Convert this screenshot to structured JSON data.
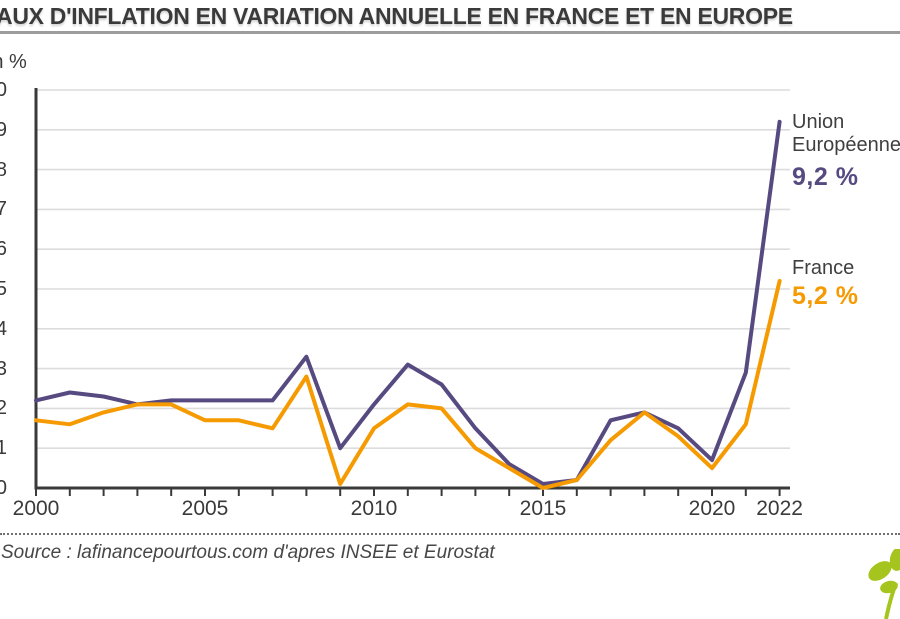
{
  "header": {
    "title": "TAUX D'INFLATION EN VARIATION ANNUELLE EN FRANCE ET EN EUROPE",
    "unit_label": "En %"
  },
  "legend": {
    "eu_line1": "Union",
    "eu_line2": "Européenne",
    "eu_value": "9,2 %",
    "fr_name": "France",
    "fr_value": "5,2 %"
  },
  "footer": {
    "source": "Source : lafinancepourtous.com d'apres INSEE et Eurostat",
    "logo": "lafinancepourtous-leaf-logo"
  },
  "colors": {
    "eu": "#564a80",
    "france": "#f59a00",
    "grid": "#dcdcdc",
    "axis": "#3a3a3a",
    "text": "#3a3a3a",
    "rule": "#9c9c9c",
    "logo_green": "#a5c41d"
  },
  "chart_data": {
    "type": "line",
    "title": "TAUX D'INFLATION EN VARIATION ANNUELLE EN FRANCE ET EN EUROPE",
    "xlabel": "",
    "ylabel": "En %",
    "x": [
      2000,
      2001,
      2002,
      2003,
      2004,
      2005,
      2006,
      2007,
      2008,
      2009,
      2010,
      2011,
      2012,
      2013,
      2014,
      2015,
      2016,
      2017,
      2018,
      2019,
      2020,
      2021,
      2022
    ],
    "series": [
      {
        "name": "Union Européenne",
        "color_key": "eu",
        "end_label": "9,2 %",
        "values": [
          2.2,
          2.4,
          2.3,
          2.1,
          2.2,
          2.2,
          2.2,
          2.2,
          3.3,
          1.0,
          2.1,
          3.1,
          2.6,
          1.5,
          0.6,
          0.1,
          0.2,
          1.7,
          1.9,
          1.5,
          0.7,
          2.9,
          9.2
        ]
      },
      {
        "name": "France",
        "color_key": "france",
        "end_label": "5,2 %",
        "values": [
          1.7,
          1.6,
          1.9,
          2.1,
          2.1,
          1.7,
          1.7,
          1.5,
          2.8,
          0.1,
          1.5,
          2.1,
          2.0,
          1.0,
          0.5,
          0.0,
          0.2,
          1.2,
          1.9,
          1.3,
          0.5,
          1.6,
          5.2
        ]
      }
    ],
    "ylim": [
      0,
      10
    ],
    "ytick_interval": 1,
    "xticks_labeled": [
      2000,
      2005,
      2010,
      2015,
      2020,
      2022
    ],
    "grid": "horizontal",
    "legend_position": "right"
  }
}
